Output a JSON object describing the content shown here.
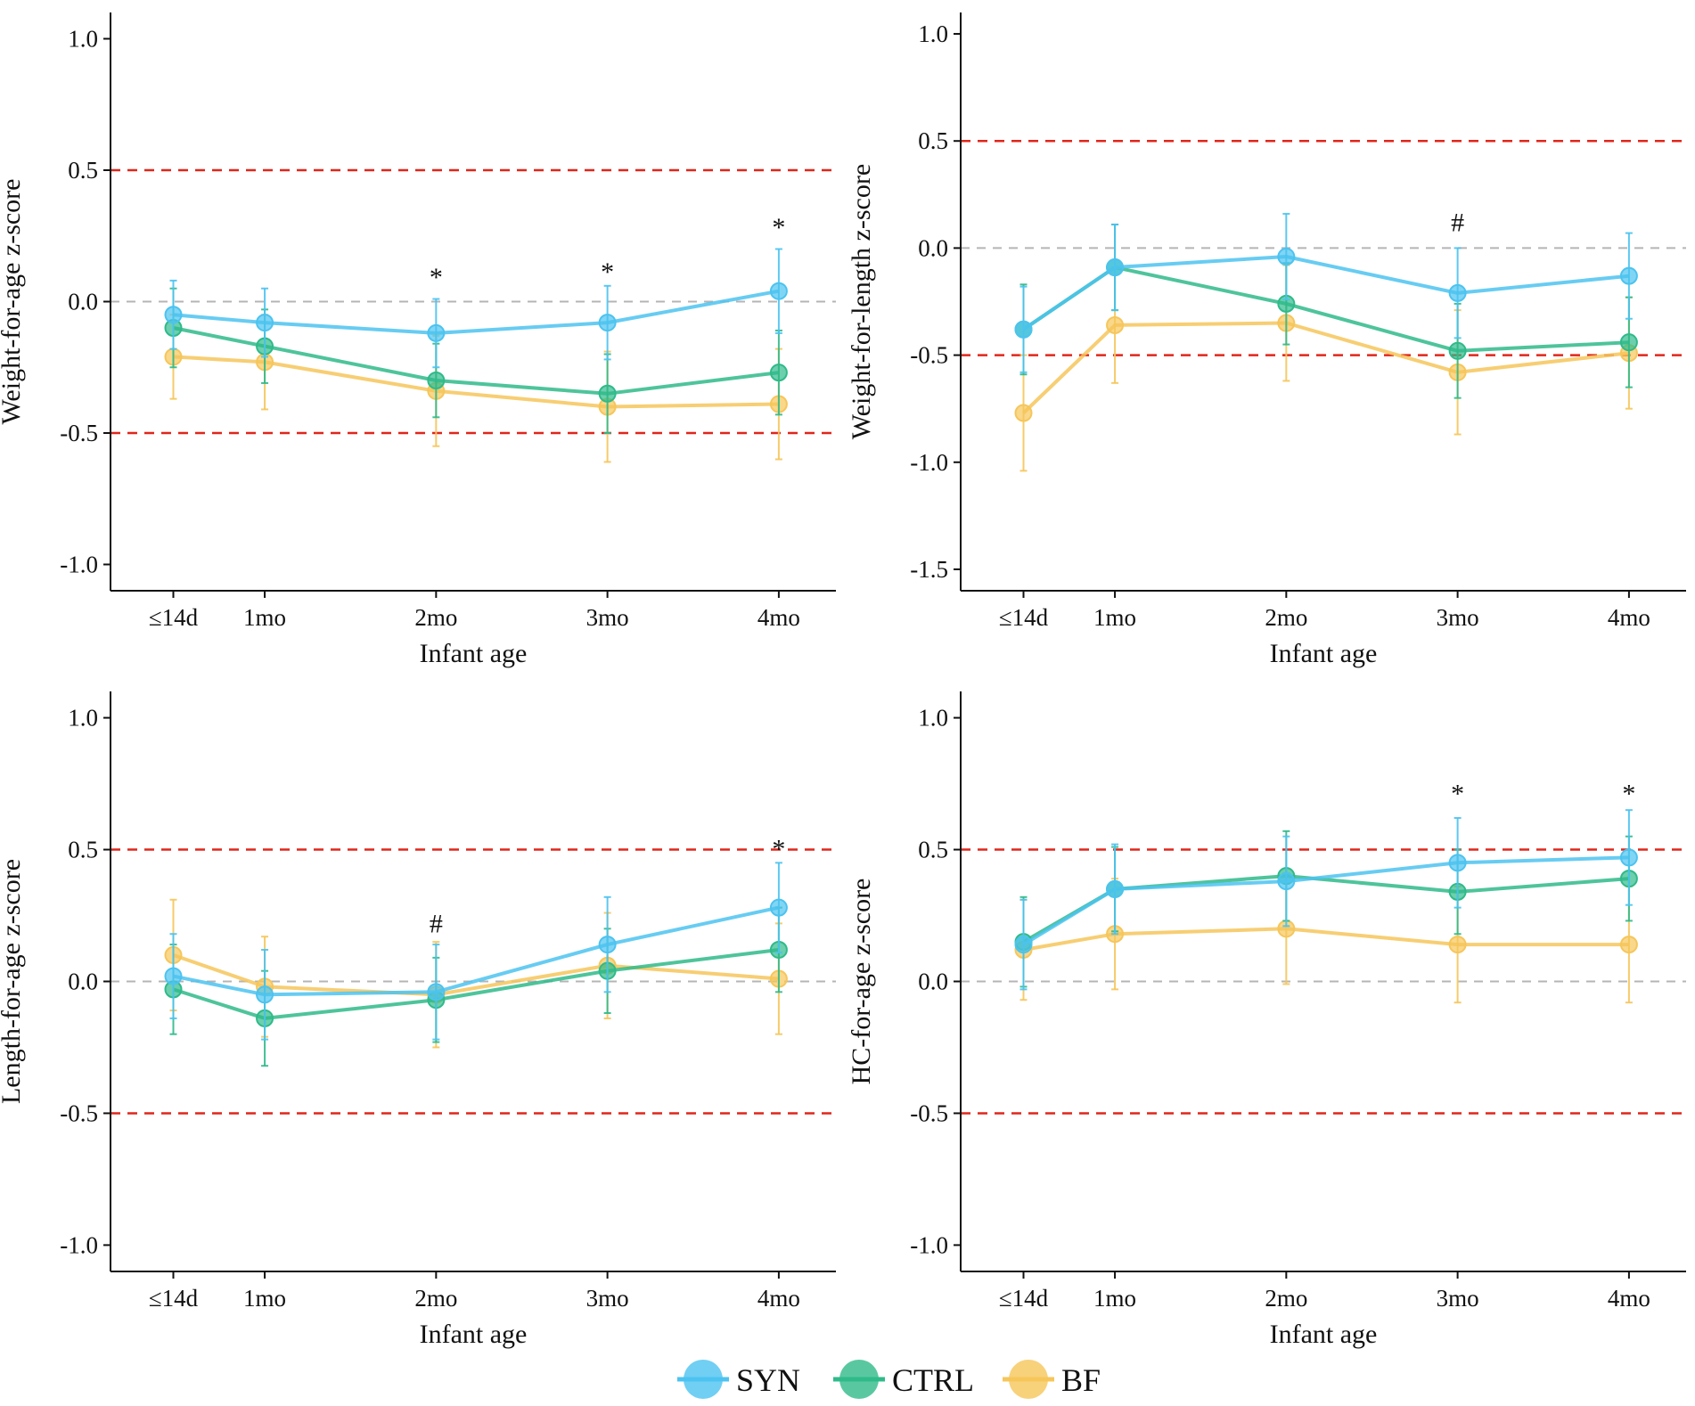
{
  "colors": {
    "SYN": "#4cc3f0",
    "CTRL": "#2fba8a",
    "BF": "#f6c65a",
    "reference_red": "#e0261b",
    "reference_gray": "#b5b5b5"
  },
  "legend": [
    {
      "key": "SYN",
      "label": "SYN"
    },
    {
      "key": "CTRL",
      "label": "CTRL"
    },
    {
      "key": "BF",
      "label": "BF"
    }
  ],
  "chart_data": [
    {
      "type": "line",
      "title": "",
      "xlabel": "Infant age",
      "ylabel": "Weight-for-age z-score",
      "x_positions_days": [
        14,
        30,
        60,
        90,
        120
      ],
      "categories": [
        "≤14d",
        "1mo",
        "2mo",
        "3mo",
        "4mo"
      ],
      "ylim": [
        -1.1,
        1.1
      ],
      "yticks": [
        1.0,
        0.5,
        0.0,
        -0.5,
        -1.0
      ],
      "ytick_labels": [
        "1.0",
        "0.5",
        "0.0",
        "-0.5",
        "-1.0"
      ],
      "reference_lines": [
        {
          "y": 0.5,
          "style": "dashed",
          "color": "red"
        },
        {
          "y": 0.0,
          "style": "dashed",
          "color": "gray"
        },
        {
          "y": -0.5,
          "style": "dashed",
          "color": "red"
        }
      ],
      "series": [
        {
          "name": "SYN",
          "values": [
            -0.05,
            -0.08,
            -0.12,
            -0.08,
            0.04
          ],
          "errors": [
            0.13,
            0.13,
            0.13,
            0.14,
            0.16
          ]
        },
        {
          "name": "CTRL",
          "values": [
            -0.1,
            -0.17,
            -0.3,
            -0.35,
            -0.27
          ],
          "errors": [
            0.15,
            0.14,
            0.14,
            0.15,
            0.16
          ]
        },
        {
          "name": "BF",
          "values": [
            -0.21,
            -0.23,
            -0.34,
            -0.4,
            -0.39
          ],
          "errors": [
            0.16,
            0.18,
            0.21,
            0.21,
            0.21
          ]
        }
      ],
      "annotations": [
        {
          "category": "2mo",
          "y": 0.12,
          "text": "*"
        },
        {
          "category": "3mo",
          "y": 0.14,
          "text": "*"
        },
        {
          "category": "4mo",
          "y": 0.31,
          "text": "*"
        }
      ]
    },
    {
      "type": "line",
      "title": "",
      "xlabel": "Infant age",
      "ylabel": "Weight-for-length z-score",
      "x_positions_days": [
        14,
        30,
        60,
        90,
        120
      ],
      "categories": [
        "≤14d",
        "1mo",
        "2mo",
        "3mo",
        "4mo"
      ],
      "ylim": [
        -1.6,
        1.1
      ],
      "yticks": [
        1.0,
        0.5,
        0.0,
        -0.5,
        -1.0,
        -1.5
      ],
      "ytick_labels": [
        "1.0",
        "0.5",
        "0.0",
        "-0.5",
        "-1.0",
        "-1.5"
      ],
      "reference_lines": [
        {
          "y": 0.5,
          "style": "dashed",
          "color": "red"
        },
        {
          "y": 0.0,
          "style": "dashed",
          "color": "gray"
        },
        {
          "y": -0.5,
          "style": "dashed",
          "color": "red"
        }
      ],
      "series": [
        {
          "name": "SYN",
          "values": [
            -0.38,
            -0.09,
            -0.04,
            -0.21,
            -0.13
          ],
          "errors": [
            0.2,
            0.2,
            0.2,
            0.21,
            0.2
          ]
        },
        {
          "name": "CTRL",
          "values": [
            -0.38,
            -0.09,
            -0.26,
            -0.48,
            -0.44
          ],
          "errors": [
            0.21,
            0.2,
            0.19,
            0.22,
            0.21
          ]
        },
        {
          "name": "BF",
          "values": [
            -0.77,
            -0.36,
            -0.35,
            -0.58,
            -0.49
          ],
          "errors": [
            0.27,
            0.27,
            0.27,
            0.29,
            0.26
          ]
        }
      ],
      "annotations": [
        {
          "category": "3mo",
          "y": 0.12,
          "text": "#"
        }
      ]
    },
    {
      "type": "line",
      "title": "",
      "xlabel": "Infant age",
      "ylabel": "Length-for-age z-score",
      "x_positions_days": [
        14,
        30,
        60,
        90,
        120
      ],
      "categories": [
        "≤14d",
        "1mo",
        "2mo",
        "3mo",
        "4mo"
      ],
      "ylim": [
        -1.1,
        1.1
      ],
      "yticks": [
        1.0,
        0.5,
        0.0,
        -0.5,
        -1.0
      ],
      "ytick_labels": [
        "1.0",
        "0.5",
        "0.0",
        "-0.5",
        "-1.0"
      ],
      "reference_lines": [
        {
          "y": 0.5,
          "style": "dashed",
          "color": "red"
        },
        {
          "y": 0.0,
          "style": "dashed",
          "color": "gray"
        },
        {
          "y": -0.5,
          "style": "dashed",
          "color": "red"
        }
      ],
      "series": [
        {
          "name": "SYN",
          "values": [
            0.02,
            -0.05,
            -0.04,
            0.14,
            0.28
          ],
          "errors": [
            0.16,
            0.17,
            0.18,
            0.18,
            0.17
          ]
        },
        {
          "name": "CTRL",
          "values": [
            -0.03,
            -0.14,
            -0.07,
            0.04,
            0.12
          ],
          "errors": [
            0.17,
            0.18,
            0.16,
            0.16,
            0.16
          ]
        },
        {
          "name": "BF",
          "values": [
            0.1,
            -0.02,
            -0.05,
            0.06,
            0.01
          ],
          "errors": [
            0.21,
            0.19,
            0.2,
            0.2,
            0.21
          ]
        }
      ],
      "annotations": [
        {
          "category": "2mo",
          "y": 0.22,
          "text": "#"
        },
        {
          "category": "4mo",
          "y": 0.53,
          "text": "*"
        }
      ]
    },
    {
      "type": "line",
      "title": "",
      "xlabel": "Infant age",
      "ylabel": "HC-for-age z-score",
      "x_positions_days": [
        14,
        30,
        60,
        90,
        120
      ],
      "categories": [
        "≤14d",
        "1mo",
        "2mo",
        "3mo",
        "4mo"
      ],
      "ylim": [
        -1.1,
        1.1
      ],
      "yticks": [
        1.0,
        0.5,
        0.0,
        -0.5,
        -1.0
      ],
      "ytick_labels": [
        "1.0",
        "0.5",
        "0.0",
        "-0.5",
        "-1.0"
      ],
      "reference_lines": [
        {
          "y": 0.5,
          "style": "dashed",
          "color": "red"
        },
        {
          "y": 0.0,
          "style": "dashed",
          "color": "gray"
        },
        {
          "y": -0.5,
          "style": "dashed",
          "color": "red"
        }
      ],
      "series": [
        {
          "name": "SYN",
          "values": [
            0.14,
            0.35,
            0.38,
            0.45,
            0.47
          ],
          "errors": [
            0.17,
            0.17,
            0.17,
            0.17,
            0.18
          ]
        },
        {
          "name": "CTRL",
          "values": [
            0.15,
            0.35,
            0.4,
            0.34,
            0.39
          ],
          "errors": [
            0.17,
            0.16,
            0.17,
            0.16,
            0.16
          ]
        },
        {
          "name": "BF",
          "values": [
            0.12,
            0.18,
            0.2,
            0.14,
            0.14
          ],
          "errors": [
            0.19,
            0.21,
            0.21,
            0.22,
            0.22
          ]
        }
      ],
      "annotations": [
        {
          "category": "3mo",
          "y": 0.74,
          "text": "*"
        },
        {
          "category": "4mo",
          "y": 0.74,
          "text": "*"
        }
      ]
    }
  ]
}
